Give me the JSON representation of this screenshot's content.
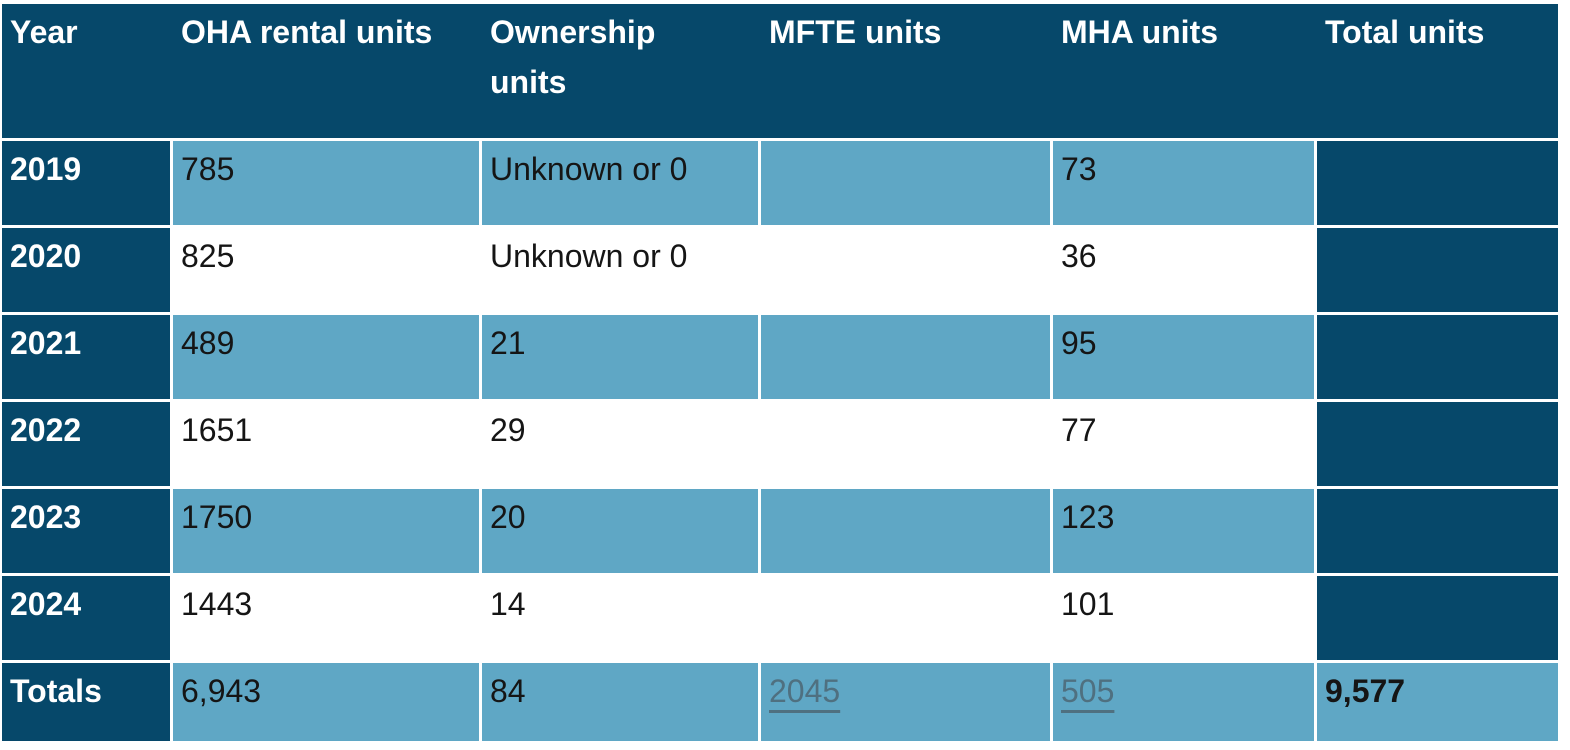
{
  "colors": {
    "header_bg": "#06486a",
    "band_row_bg": "#5fa7c5",
    "alt_row_bg": "#ffffff",
    "header_text": "#ffffff",
    "body_text": "#151515",
    "link_text": "#4f7080"
  },
  "chart_data": {
    "type": "table",
    "columns": [
      "Year",
      "OHA rental units",
      "Ownership units",
      "MFTE units",
      "MHA units",
      "Total units"
    ],
    "rows": [
      [
        "2019",
        "785",
        "Unknown or 0",
        "",
        "73",
        ""
      ],
      [
        "2020",
        "825",
        "Unknown or 0",
        "",
        "36",
        ""
      ],
      [
        "2021",
        "489",
        "21",
        "",
        "95",
        ""
      ],
      [
        "2022",
        "1651",
        "29",
        "",
        "77",
        ""
      ],
      [
        "2023",
        "1750",
        "20",
        "",
        "123",
        ""
      ],
      [
        "2024",
        "1443",
        "14",
        "",
        "101",
        ""
      ],
      [
        "Totals",
        "6,943",
        "84",
        "2045",
        "505",
        "9,577"
      ]
    ],
    "notes": {
      "empty_body_total_cells": "dark navy fill, no value shown",
      "totals_mfte_mha_style": "gray underlined (hyperlink-style) values"
    }
  }
}
